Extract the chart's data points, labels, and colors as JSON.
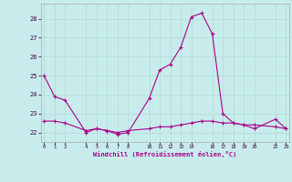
{
  "xlabel": "Windchill (Refroidissement éolien,°C)",
  "background_color": "#c8ecec",
  "grid_color": "#b0d8d8",
  "line_color": "#aa0088",
  "x_hours": [
    0,
    1,
    2,
    4,
    5,
    6,
    7,
    8,
    10,
    11,
    12,
    13,
    14,
    15,
    16,
    17,
    18,
    19,
    20,
    22,
    23
  ],
  "series1": [
    25.0,
    23.9,
    23.7,
    22.0,
    22.2,
    22.1,
    21.9,
    22.0,
    23.8,
    25.3,
    25.6,
    26.5,
    28.1,
    28.3,
    27.2,
    23.0,
    22.5,
    22.4,
    22.2,
    22.7,
    22.2
  ],
  "series2": [
    22.6,
    22.6,
    22.5,
    22.1,
    22.2,
    22.1,
    22.0,
    22.1,
    22.2,
    22.3,
    22.3,
    22.4,
    22.5,
    22.6,
    22.6,
    22.5,
    22.5,
    22.4,
    22.4,
    22.3,
    22.2
  ],
  "x_ticks": [
    0,
    1,
    2,
    4,
    5,
    6,
    7,
    8,
    10,
    11,
    12,
    13,
    14,
    16,
    17,
    18,
    19,
    20,
    22,
    23
  ],
  "x_tick_labels": [
    "0",
    "1",
    "2",
    "4",
    "5",
    "6",
    "7",
    "8",
    "10",
    "11",
    "12",
    "13",
    "14",
    "16",
    "17",
    "18",
    "19",
    "20",
    "22",
    "23"
  ],
  "ylim": [
    21.5,
    28.8
  ],
  "xlim": [
    -0.3,
    23.3
  ],
  "y_ticks": [
    22,
    23,
    24,
    25,
    26,
    27,
    28
  ],
  "figsize": [
    3.2,
    2.0
  ],
  "dpi": 100
}
